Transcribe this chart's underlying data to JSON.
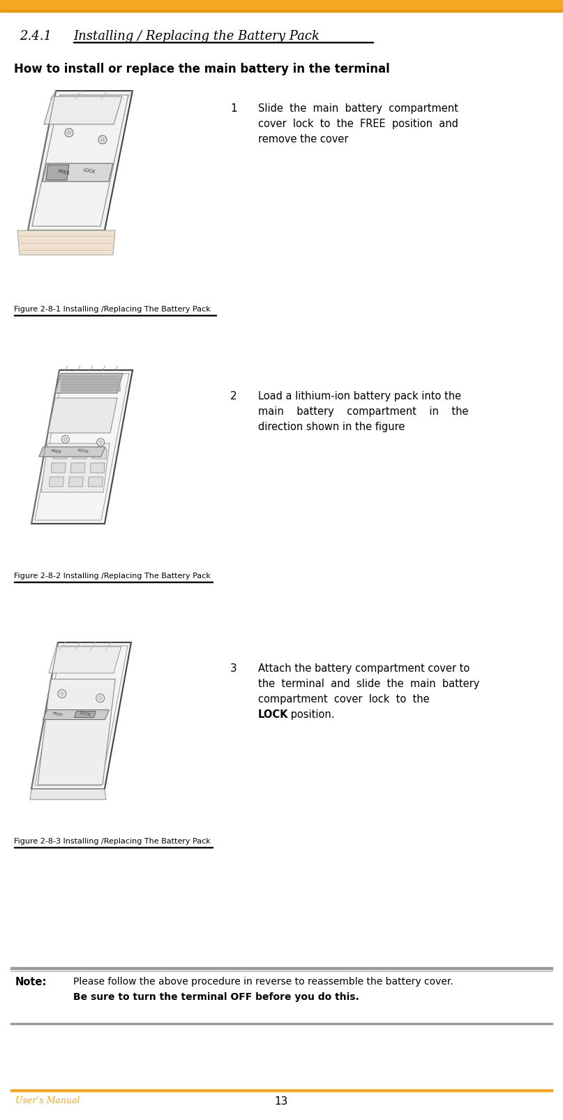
{
  "title_section": "2.4.1",
  "title_text": "Installing / Replacing the Battery Pack",
  "subtitle": "How to install or replace the main battery in the terminal",
  "step1_num": "1",
  "step1_text_lines": [
    "Slide  the  main  battery  compartment",
    "cover  lock  to  the  FREE  position  and",
    "remove the cover"
  ],
  "step1_fig": "Figure 2-8-1 Installing /Replacing The Battery Pack",
  "step2_num": "2",
  "step2_text_lines": [
    "Load a lithium-ion battery pack into the",
    "main    battery    compartment    in    the",
    "direction shown in the figure"
  ],
  "step2_fig": "Figure 2-8-2 Installing /Replacing The Battery Pack",
  "step3_num": "3",
  "step3_text_lines": [
    "Attach the battery compartment cover to",
    "the  terminal  and  slide  the  main  battery",
    "compartment  cover  lock  to  the  "
  ],
  "step3_bold": "LOCK",
  "step3_last_line": "position.",
  "step3_fig": "Figure 2-8-3 Installing /Replacing The Battery Pack",
  "note_label": "Note:",
  "note_line1": "Please follow the above procedure in reverse to reassemble the battery cover.",
  "note_line2": "Be sure to turn the terminal OFF before you do this.",
  "footer_left": "User’s Manual",
  "footer_center": "13",
  "orange_color": "#F5A623",
  "text_color": "#000000",
  "bg_color": "#FFFFFF"
}
